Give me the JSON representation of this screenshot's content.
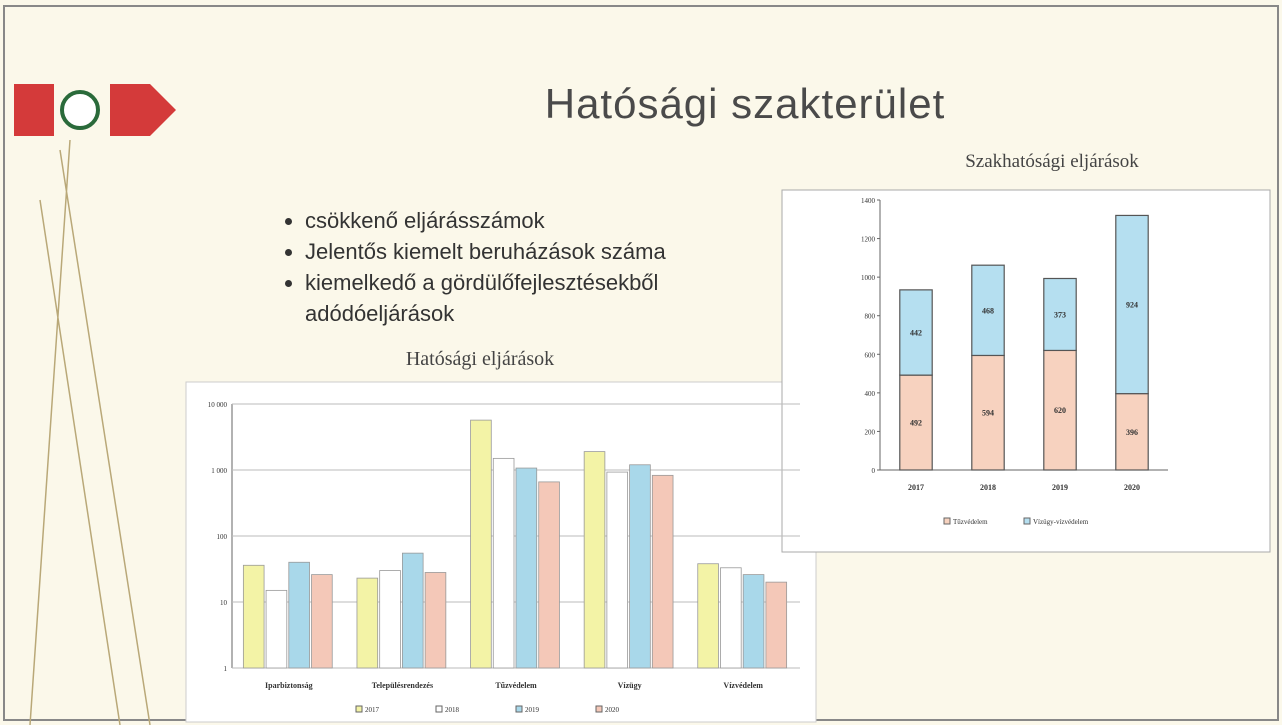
{
  "title": "Hatósági szakterület",
  "bullets": [
    "csökkenő eljárásszámok",
    "Jelentős kiemelt beruházások száma",
    "kiemelkedő a gördülőfejlesztésekből adódóeljárások"
  ],
  "chart_data": [
    {
      "type": "bar",
      "title": "Hatósági eljárások",
      "log": true,
      "grid": true,
      "legend": "bottom",
      "categories": [
        "Iparbiztonság",
        "Településrendezés",
        "Tűzvédelem",
        "Vízügy",
        "Vízvédelem"
      ],
      "ylim": [
        1,
        10000
      ],
      "yticks": [
        1,
        10,
        100,
        {
          "value": 1000,
          "label": "1 000"
        },
        {
          "value": 10000,
          "label": "10 000"
        }
      ],
      "series": [
        {
          "name": "2017",
          "color": "#f3f3a6",
          "values": [
            36,
            23,
            5700,
            1900,
            38
          ]
        },
        {
          "name": "2018",
          "color": "#ffffff",
          "values": [
            15,
            30,
            1500,
            930,
            33
          ]
        },
        {
          "name": "2019",
          "color": "#a9d8ea",
          "values": [
            40,
            55,
            1070,
            1200,
            26
          ]
        },
        {
          "name": "2020",
          "color": "#f4c8b8",
          "values": [
            26,
            28,
            660,
            830,
            20
          ]
        }
      ]
    },
    {
      "type": "stacked-bar",
      "title": "Szakhatósági eljárások",
      "grid": false,
      "legend": "bottom",
      "categories": [
        "2017",
        "2018",
        "2019",
        "2020"
      ],
      "ylim": [
        0,
        1400
      ],
      "yticks": [
        0,
        200,
        400,
        600,
        800,
        1000,
        1200,
        1400
      ],
      "series": [
        {
          "name": "Tűzvédelem",
          "color": "#f7d2bf",
          "values": [
            492,
            594,
            620,
            396
          ]
        },
        {
          "name": "Vízügy-vízvédelem",
          "color": "#b5dff0",
          "values": [
            442,
            468,
            373,
            924
          ]
        }
      ]
    }
  ]
}
